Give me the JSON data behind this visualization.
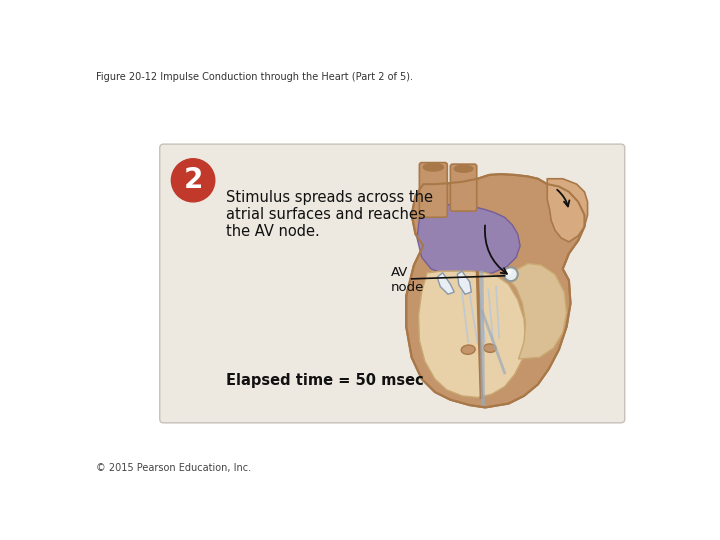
{
  "figure_title": "Figure 20-12 Impulse Conduction through the Heart (Part 2 of 5).",
  "figure_title_fontsize": 7,
  "figure_title_color": "#333333",
  "copyright_text": "© 2015 Pearson Education, Inc.",
  "copyright_fontsize": 7,
  "copyright_color": "#444444",
  "panel_bg": "#ede8e0",
  "panel_border": "#c8c0b8",
  "badge_color": "#c0392b",
  "badge_number": "2",
  "badge_number_color": "#ffffff",
  "badge_fontsize": 20,
  "step_text_lines": [
    "Stimulus spreads across the",
    "atrial surfaces and reaches",
    "the AV node."
  ],
  "step_text_fontsize": 10.5,
  "step_text_color": "#111111",
  "av_label": "AV\nnode",
  "av_label_fontsize": 9.5,
  "av_label_color": "#111111",
  "elapsed_text": "Elapsed time = 50 msec",
  "elapsed_fontsize": 10.5,
  "elapsed_color": "#111111",
  "bg_color": "#ffffff",
  "heart_brown": "#C4956A",
  "heart_brown_dark": "#A87848",
  "heart_brown_light": "#D8AA80",
  "heart_cream": "#E8D0A8",
  "heart_cream_dark": "#C8A870",
  "heart_purple": "#9080B8",
  "heart_purple_dark": "#705898",
  "heart_blue_gray": "#B8C8D8",
  "heart_white": "#E8EEF4",
  "heart_tan_inner": "#DBBF94"
}
